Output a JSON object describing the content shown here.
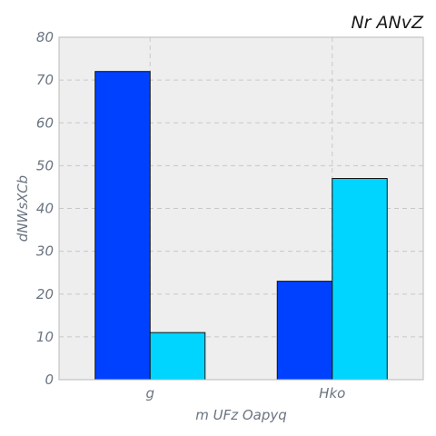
{
  "chart_data": {
    "type": "bar",
    "title": "Nr ANvZ",
    "xlabel": "m UFz Oapyq",
    "ylabel": "dNWsXCb",
    "categories": [
      "g",
      "Hko"
    ],
    "series": [
      {
        "values": [
          72,
          23
        ],
        "color": "#0041ff"
      },
      {
        "values": [
          11,
          47
        ],
        "color": "#00d5ff"
      }
    ],
    "ylim": [
      0,
      80
    ],
    "yticks": [
      0,
      10,
      20,
      30,
      40,
      50,
      60,
      70,
      80
    ],
    "grid": true,
    "plot_background": "#eeeeee",
    "grid_color": "#c8c8c8",
    "axis_color": "#bbbbbb"
  }
}
